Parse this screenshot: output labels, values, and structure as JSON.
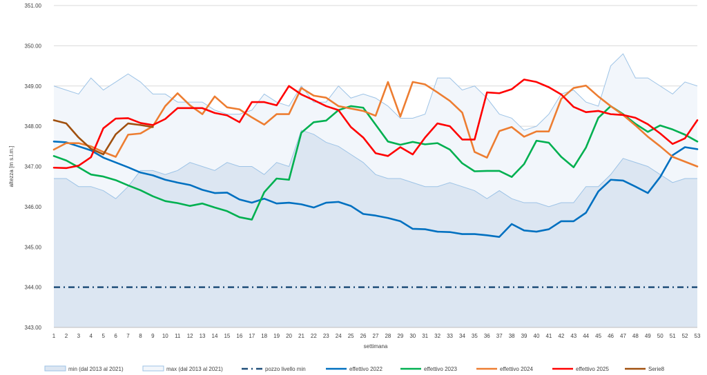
{
  "chart_data": {
    "type": "line",
    "title": "",
    "xlabel": "settimana",
    "ylabel": "altezza [m s.l.m.]",
    "ylim": [
      343.0,
      351.0
    ],
    "yticks": [
      343.0,
      344.0,
      345.0,
      346.0,
      347.0,
      348.0,
      349.0,
      350.0,
      351.0
    ],
    "ytick_labels": [
      "343.00",
      "344.00",
      "345.00",
      "346.00",
      "347.00",
      "348.00",
      "349.00",
      "350.00",
      "351.00"
    ],
    "categories": [
      "1",
      "2",
      "3",
      "4",
      "5",
      "6",
      "7",
      "8",
      "9",
      "10",
      "11",
      "12",
      "13",
      "14",
      "15",
      "16",
      "17",
      "18",
      "19",
      "20",
      "21",
      "22",
      "23",
      "24",
      "25",
      "26",
      "27",
      "28",
      "29",
      "30",
      "31",
      "32",
      "33",
      "34",
      "35",
      "36",
      "37",
      "38",
      "39",
      "40",
      "41",
      "42",
      "43",
      "44",
      "45",
      "46",
      "47",
      "48",
      "49",
      "50",
      "51",
      "52",
      "53"
    ],
    "grid": true,
    "legend_position": "bottom",
    "series": [
      {
        "name": "min (dal 2013 al 2021)",
        "kind": "area",
        "color": "#dce6f2",
        "stroke": "#9dc3e6",
        "values": [
          346.7,
          346.7,
          346.5,
          346.5,
          346.4,
          346.2,
          346.5,
          346.9,
          346.9,
          346.8,
          346.9,
          347.1,
          347.0,
          346.9,
          347.1,
          347.0,
          347.0,
          346.8,
          347.1,
          347.0,
          347.9,
          347.8,
          347.6,
          347.5,
          347.3,
          347.1,
          346.8,
          346.7,
          346.7,
          346.6,
          346.5,
          346.5,
          346.6,
          346.5,
          346.4,
          346.2,
          346.4,
          346.2,
          346.1,
          346.1,
          346.0,
          346.1,
          346.1,
          346.5,
          346.5,
          346.8,
          347.2,
          347.1,
          347.0,
          346.8,
          346.6,
          346.7,
          346.7
        ]
      },
      {
        "name": "max (dal 2013 al 2021)",
        "kind": "area",
        "color": "#f2f6fb",
        "stroke": "#9dc3e6",
        "values": [
          349.0,
          348.9,
          348.8,
          349.2,
          348.9,
          349.1,
          349.3,
          349.1,
          348.8,
          348.8,
          348.6,
          348.6,
          348.6,
          348.4,
          348.3,
          348.3,
          348.4,
          348.8,
          348.6,
          348.5,
          349.0,
          348.6,
          348.6,
          349.0,
          348.7,
          348.8,
          348.7,
          348.5,
          348.2,
          348.2,
          348.3,
          349.2,
          349.2,
          348.9,
          349.0,
          348.7,
          348.3,
          348.2,
          347.9,
          348.0,
          348.3,
          348.8,
          348.9,
          348.6,
          348.5,
          349.5,
          349.8,
          349.2,
          349.2,
          349.0,
          348.8,
          349.1,
          349.0
        ]
      },
      {
        "name": "pozzo livello min",
        "kind": "dashdot",
        "color": "#1f4e79",
        "values": [
          344.0,
          344.0,
          344.0,
          344.0,
          344.0,
          344.0,
          344.0,
          344.0,
          344.0,
          344.0,
          344.0,
          344.0,
          344.0,
          344.0,
          344.0,
          344.0,
          344.0,
          344.0,
          344.0,
          344.0,
          344.0,
          344.0,
          344.0,
          344.0,
          344.0,
          344.0,
          344.0,
          344.0,
          344.0,
          344.0,
          344.0,
          344.0,
          344.0,
          344.0,
          344.0,
          344.0,
          344.0,
          344.0,
          344.0,
          344.0,
          344.0,
          344.0,
          344.0,
          344.0,
          344.0,
          344.0,
          344.0,
          344.0,
          344.0,
          344.0,
          344.0,
          344.0,
          344.0
        ]
      },
      {
        "name": "effettivo 2022",
        "kind": "line",
        "color": "#0070c0",
        "values": [
          347.62,
          347.6,
          347.5,
          347.4,
          347.22,
          347.1,
          346.98,
          346.85,
          346.78,
          346.67,
          346.6,
          346.54,
          346.42,
          346.34,
          346.35,
          346.18,
          346.1,
          346.2,
          346.08,
          346.1,
          346.06,
          345.98,
          346.1,
          346.12,
          346.02,
          345.82,
          345.78,
          345.72,
          345.64,
          345.45,
          345.44,
          345.38,
          345.37,
          345.32,
          345.32,
          345.29,
          345.25,
          345.57,
          345.41,
          345.38,
          345.44,
          345.64,
          345.64,
          345.85,
          346.38,
          346.67,
          346.65,
          346.5,
          346.34,
          346.74,
          347.28,
          347.48,
          347.43
        ]
      },
      {
        "name": "effettivo 2023",
        "kind": "line",
        "color": "#00b050",
        "values": [
          347.26,
          347.15,
          346.98,
          346.8,
          346.75,
          346.66,
          346.53,
          346.41,
          346.26,
          346.14,
          346.09,
          346.02,
          346.08,
          345.98,
          345.89,
          345.74,
          345.68,
          346.36,
          346.7,
          346.67,
          347.84,
          348.1,
          348.14,
          348.4,
          348.5,
          348.46,
          348.04,
          347.62,
          347.54,
          347.61,
          347.55,
          347.58,
          347.42,
          347.08,
          346.88,
          346.89,
          346.89,
          346.74,
          347.06,
          347.64,
          347.59,
          347.24,
          346.98,
          347.47,
          348.21,
          348.5,
          348.3,
          348.06,
          347.86,
          348.02,
          347.92,
          347.79,
          347.62
        ]
      },
      {
        "name": "effettivo 2024",
        "kind": "line",
        "color": "#ed7d31",
        "values": [
          347.42,
          347.58,
          347.58,
          347.5,
          347.36,
          347.24,
          347.79,
          347.82,
          348.0,
          348.5,
          348.82,
          348.52,
          348.3,
          348.74,
          348.47,
          348.42,
          348.22,
          348.04,
          348.3,
          348.3,
          348.95,
          348.76,
          348.71,
          348.5,
          348.44,
          348.38,
          348.26,
          349.1,
          348.24,
          349.1,
          349.04,
          348.84,
          348.63,
          348.34,
          347.36,
          347.22,
          347.88,
          347.98,
          347.74,
          347.87,
          347.87,
          348.68,
          348.95,
          349.01,
          348.74,
          348.5,
          348.28,
          348.02,
          347.74,
          347.5,
          347.24,
          347.12,
          347.0
        ]
      },
      {
        "name": "effettivo 2025",
        "kind": "line",
        "color": "#ff0000",
        "values": [
          346.97,
          346.96,
          347.02,
          347.23,
          347.95,
          348.19,
          348.2,
          348.08,
          348.03,
          348.18,
          348.45,
          348.45,
          348.45,
          348.33,
          348.27,
          348.1,
          348.6,
          348.6,
          348.52,
          349.0,
          348.79,
          348.65,
          348.5,
          348.4,
          347.98,
          347.72,
          347.33,
          347.26,
          347.48,
          347.3,
          347.72,
          348.07,
          348.0,
          347.67,
          347.67,
          348.84,
          348.82,
          348.92,
          349.16,
          349.1,
          348.97,
          348.79,
          348.48,
          348.35,
          348.38,
          348.3,
          348.28,
          348.21,
          348.05,
          347.82,
          347.56,
          347.7,
          348.15
        ]
      },
      {
        "name": "Serie8",
        "kind": "line",
        "color": "#a0500f",
        "values": [
          348.15,
          348.07,
          347.72,
          347.44,
          347.3,
          347.8,
          348.07,
          348.03,
          347.98,
          null,
          null,
          null,
          null,
          null,
          null,
          null,
          null,
          null,
          null,
          null,
          null,
          null,
          null,
          null,
          null,
          null,
          null,
          null,
          null,
          null,
          null,
          null,
          null,
          null,
          null,
          null,
          null,
          null,
          null,
          null,
          null,
          null,
          null,
          null,
          null,
          null,
          null,
          null,
          null,
          null,
          null,
          null,
          null
        ]
      }
    ]
  }
}
